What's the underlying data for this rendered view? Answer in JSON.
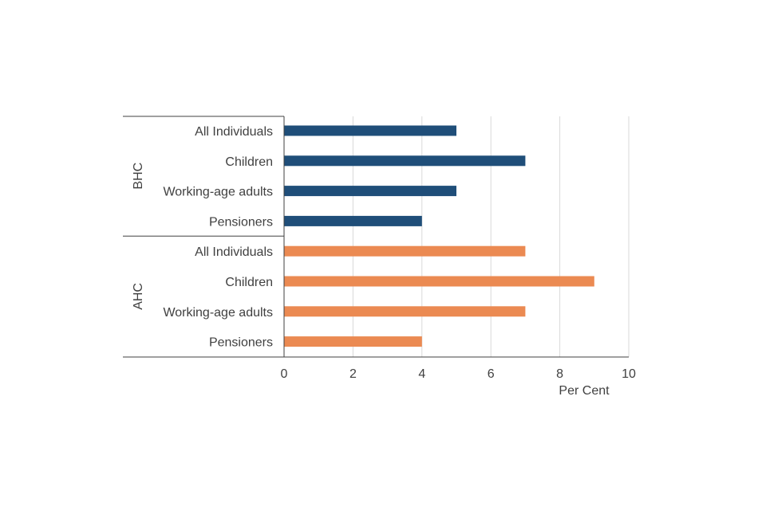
{
  "chart_data": {
    "type": "bar",
    "orientation": "horizontal",
    "xlabel": "Per Cent",
    "xlim": [
      0,
      10
    ],
    "x_ticks": [
      0,
      2,
      4,
      6,
      8,
      10
    ],
    "grid": "vertical gridlines",
    "groups": [
      {
        "name": "BHC",
        "color": "#1f4e79",
        "categories": [
          "All Individuals",
          "Children",
          "Working-age adults",
          "Pensioners"
        ],
        "values": [
          5,
          7,
          5,
          4
        ]
      },
      {
        "name": "AHC",
        "color": "#eb8a52",
        "categories": [
          "All Individuals",
          "Children",
          "Working-age adults",
          "Pensioners"
        ],
        "values": [
          7,
          9,
          7,
          4
        ]
      }
    ]
  }
}
